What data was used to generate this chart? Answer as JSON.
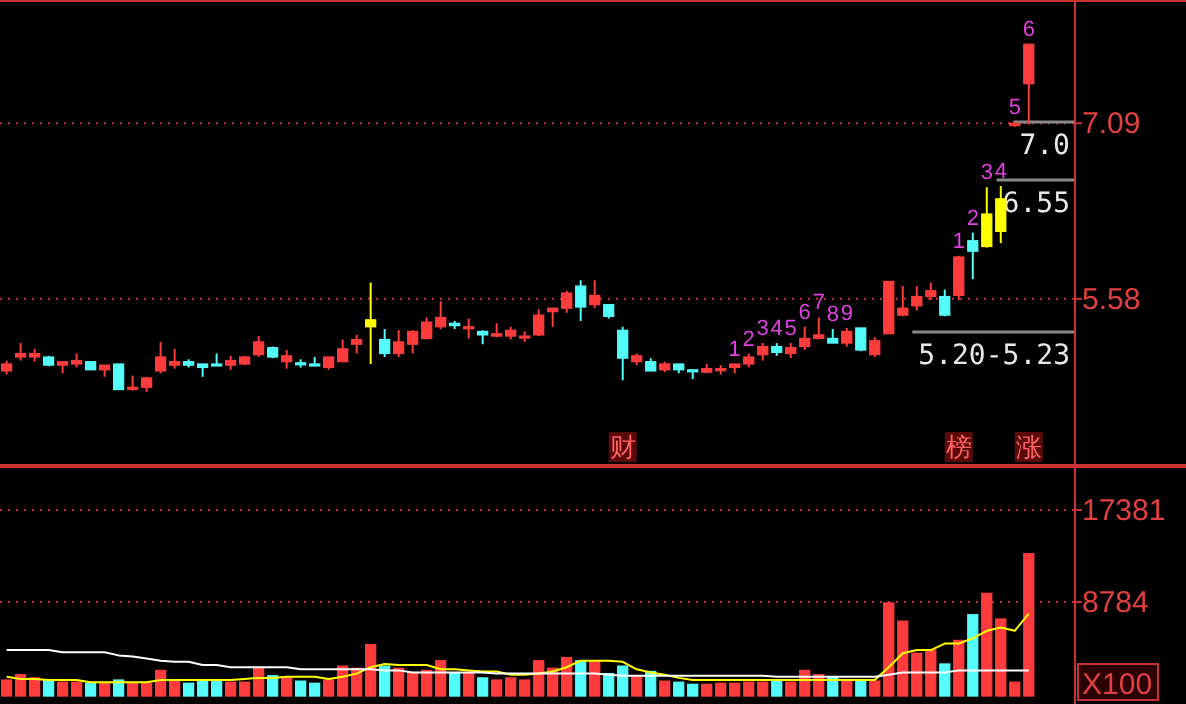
{
  "chart_data": [
    {
      "type": "candlestick",
      "categories": [
        null,
        null,
        null,
        null,
        null,
        null,
        null,
        null,
        null,
        null,
        null,
        null,
        null,
        null,
        null,
        null,
        null,
        null,
        null,
        null,
        null,
        null,
        null,
        null,
        null,
        null,
        null,
        null,
        null,
        null,
        null,
        null,
        null,
        null,
        null,
        null,
        null,
        null,
        null,
        null,
        null,
        null,
        null,
        null,
        null,
        null,
        null,
        null,
        null,
        null,
        null,
        null,
        null,
        null,
        null,
        null,
        null,
        null,
        null,
        null,
        null,
        null,
        null,
        null,
        null,
        null,
        null,
        null,
        null,
        null,
        null,
        null,
        null,
        null
      ],
      "ohlc": [
        [
          4.96,
          5.05,
          4.93,
          5.02
        ],
        [
          5.08,
          5.2,
          5.05,
          5.11
        ],
        [
          5.08,
          5.15,
          5.04,
          5.11
        ],
        [
          5.08,
          5.09,
          5.0,
          5.01
        ],
        [
          5.01,
          5.04,
          4.94,
          5.04
        ],
        [
          5.02,
          5.11,
          4.99,
          5.05
        ],
        [
          5.04,
          5.04,
          4.97,
          4.97
        ],
        [
          4.97,
          5.01,
          4.91,
          5.01
        ],
        [
          5.02,
          5.02,
          4.8,
          4.8
        ],
        [
          4.81,
          4.92,
          4.79,
          4.82
        ],
        [
          4.82,
          4.91,
          4.78,
          4.9
        ],
        [
          4.96,
          5.21,
          4.94,
          5.08
        ],
        [
          5.01,
          5.15,
          4.98,
          5.04
        ],
        [
          5.04,
          5.06,
          4.99,
          5.01
        ],
        [
          5.02,
          5.02,
          4.91,
          4.99
        ],
        [
          5.02,
          5.11,
          5.01,
          5.01
        ],
        [
          5.01,
          5.09,
          4.97,
          5.05
        ],
        [
          5.02,
          5.09,
          5.01,
          5.08
        ],
        [
          5.1,
          5.26,
          5.08,
          5.21
        ],
        [
          5.16,
          5.17,
          5.07,
          5.08
        ],
        [
          5.04,
          5.14,
          4.98,
          5.09
        ],
        [
          5.03,
          5.06,
          4.99,
          5.02
        ],
        [
          5.02,
          5.08,
          5.01,
          5.01
        ],
        [
          4.99,
          5.08,
          4.97,
          5.08
        ],
        [
          5.04,
          5.23,
          5.04,
          5.15
        ],
        [
          5.19,
          5.27,
          5.11,
          5.23
        ],
        [
          5.34,
          5.72,
          5.02,
          5.4
        ],
        [
          5.23,
          5.32,
          5.08,
          5.11
        ],
        [
          5.11,
          5.31,
          5.08,
          5.21
        ],
        [
          5.19,
          5.31,
          5.11,
          5.3
        ],
        [
          5.24,
          5.42,
          5.23,
          5.38
        ],
        [
          5.34,
          5.56,
          5.32,
          5.42
        ],
        [
          5.37,
          5.39,
          5.32,
          5.35
        ],
        [
          5.33,
          5.41,
          5.24,
          5.34
        ],
        [
          5.3,
          5.31,
          5.19,
          5.27
        ],
        [
          5.26,
          5.37,
          5.25,
          5.28
        ],
        [
          5.26,
          5.34,
          5.23,
          5.31
        ],
        [
          5.25,
          5.3,
          5.21,
          5.26
        ],
        [
          5.27,
          5.49,
          5.26,
          5.44
        ],
        [
          5.47,
          5.5,
          5.34,
          5.5
        ],
        [
          5.5,
          5.65,
          5.46,
          5.63
        ],
        [
          5.69,
          5.74,
          5.39,
          5.51
        ],
        [
          5.53,
          5.74,
          5.5,
          5.61
        ],
        [
          5.53,
          5.53,
          5.41,
          5.43
        ],
        [
          5.31,
          5.34,
          4.88,
          5.07
        ],
        [
          5.04,
          5.11,
          5.01,
          5.09
        ],
        [
          5.04,
          5.07,
          4.96,
          4.96
        ],
        [
          4.97,
          5.04,
          4.95,
          5.02
        ],
        [
          5.02,
          5.02,
          4.94,
          4.97
        ],
        [
          4.97,
          4.97,
          4.89,
          4.96
        ],
        [
          4.95,
          5.02,
          4.94,
          4.98
        ],
        [
          4.97,
          5.01,
          4.93,
          4.98
        ],
        [
          4.99,
          5.02,
          4.94,
          5.02
        ],
        [
          5.02,
          5.11,
          4.99,
          5.08
        ],
        [
          5.1,
          5.2,
          5.05,
          5.17
        ],
        [
          5.17,
          5.2,
          5.09,
          5.12
        ],
        [
          5.11,
          5.2,
          5.07,
          5.16
        ],
        [
          5.17,
          5.34,
          5.14,
          5.24
        ],
        [
          5.24,
          5.42,
          5.23,
          5.27
        ],
        [
          5.24,
          5.32,
          5.2,
          5.2
        ],
        [
          5.2,
          5.33,
          5.17,
          5.3
        ],
        [
          5.33,
          5.33,
          5.13,
          5.14
        ],
        [
          5.1,
          5.25,
          5.08,
          5.22
        ],
        [
          5.28,
          5.73,
          5.28,
          5.73
        ],
        [
          5.44,
          5.69,
          5.43,
          5.5
        ],
        [
          5.52,
          5.69,
          5.48,
          5.6
        ],
        [
          5.6,
          5.72,
          5.57,
          5.65
        ],
        [
          5.6,
          5.66,
          5.43,
          5.44
        ],
        [
          5.61,
          5.95,
          5.57,
          5.94
        ],
        [
          6.08,
          6.15,
          5.75,
          5.99
        ],
        [
          6.03,
          6.54,
          6.02,
          6.31
        ],
        [
          6.16,
          6.55,
          6.06,
          6.44
        ],
        [
          7.07,
          7.1,
          7.06,
          7.09
        ],
        [
          7.43,
          7.77,
          7.08,
          7.77
        ]
      ],
      "colors": [
        "#ff3c3c",
        "#ff3c3c",
        "#ff3c3c",
        "#54fcfc",
        "#ff3c3c",
        "#ff3c3c",
        "#54fcfc",
        "#ff3c3c",
        "#54fcfc",
        "#ff3c3c",
        "#ff3c3c",
        "#ff3c3c",
        "#ff3c3c",
        "#54fcfc",
        "#54fcfc",
        "#54fcfc",
        "#ff3c3c",
        "#ff3c3c",
        "#ff3c3c",
        "#54fcfc",
        "#ff3c3c",
        "#54fcfc",
        "#54fcfc",
        "#ff3c3c",
        "#ff3c3c",
        "#ff3c3c",
        "#ffff00",
        "#54fcfc",
        "#ff3c3c",
        "#ff3c3c",
        "#ff3c3c",
        "#ff3c3c",
        "#54fcfc",
        "#ff3c3c",
        "#54fcfc",
        "#ff3c3c",
        "#ff3c3c",
        "#ff3c3c",
        "#ff3c3c",
        "#ff3c3c",
        "#ff3c3c",
        "#54fcfc",
        "#ff3c3c",
        "#54fcfc",
        "#54fcfc",
        "#ff3c3c",
        "#54fcfc",
        "#ff3c3c",
        "#54fcfc",
        "#54fcfc",
        "#ff3c3c",
        "#ff3c3c",
        "#ff3c3c",
        "#ff3c3c",
        "#ff3c3c",
        "#54fcfc",
        "#ff3c3c",
        "#ff3c3c",
        "#ff3c3c",
        "#54fcfc",
        "#ff3c3c",
        "#54fcfc",
        "#ff3c3c",
        "#ff3c3c",
        "#ff3c3c",
        "#ff3c3c",
        "#ff3c3c",
        "#54fcfc",
        "#ff3c3c",
        "#54fcfc",
        "#ffff00",
        "#ffff00",
        "#ff3c3c",
        "#ff3c3c"
      ],
      "value_labels": [
        null,
        null,
        null,
        null,
        null,
        null,
        null,
        null,
        null,
        null,
        null,
        null,
        null,
        null,
        null,
        null,
        null,
        null,
        null,
        null,
        null,
        null,
        null,
        null,
        null,
        null,
        null,
        null,
        null,
        null,
        null,
        null,
        null,
        null,
        null,
        null,
        null,
        null,
        null,
        null,
        null,
        null,
        null,
        null,
        null,
        null,
        null,
        null,
        null,
        null,
        null,
        null,
        "1",
        "2",
        "3",
        "4",
        "5",
        "6",
        "7",
        "8",
        "9",
        null,
        null,
        null,
        null,
        null,
        null,
        null,
        "1",
        "2",
        "3",
        "4",
        "5",
        "6"
      ],
      "ylim": [
        4.16,
        8.15
      ],
      "yticks": [
        5.58,
        7.09
      ],
      "grid": "y",
      "annotations": [
        "7.0",
        "6.55",
        "5.20-5.23",
        "财",
        "榜",
        "涨"
      ]
    },
    {
      "type": "bar",
      "categories": [
        null,
        null,
        null,
        null,
        null,
        null,
        null,
        null,
        null,
        null,
        null,
        null,
        null,
        null,
        null,
        null,
        null,
        null,
        null,
        null,
        null,
        null,
        null,
        null,
        null,
        null,
        null,
        null,
        null,
        null,
        null,
        null,
        null,
        null,
        null,
        null,
        null,
        null,
        null,
        null,
        null,
        null,
        null,
        null,
        null,
        null,
        null,
        null,
        null,
        null,
        null,
        null,
        null,
        null,
        null,
        null,
        null,
        null,
        null,
        null,
        null,
        null,
        null,
        null,
        null,
        null,
        null,
        null,
        null,
        null,
        null,
        null,
        null,
        null
      ],
      "series": [
        {
          "values": [
            1500,
            2000,
            1700,
            1500,
            1300,
            1300,
            1200,
            1200,
            1500,
            1200,
            1200,
            2400,
            1500,
            1200,
            1500,
            1500,
            1300,
            1300,
            2700,
            1900,
            1800,
            1400,
            1200,
            1500,
            2800,
            2600,
            4800,
            2800,
            2600,
            2200,
            2400,
            3300,
            2100,
            2100,
            1700,
            1500,
            1700,
            1500,
            3300,
            2600,
            3600,
            3300,
            3300,
            2100,
            2800,
            1900,
            2300,
            1400,
            1300,
            1100,
            1100,
            1200,
            1200,
            1300,
            1300,
            1500,
            1300,
            2400,
            2000,
            1800,
            1500,
            1500,
            1400,
            8700,
            7000,
            4000,
            4300,
            3000,
            5200,
            7600,
            9600,
            7200,
            1300,
            13300
          ],
          "colors": [
            "#ff3c3c",
            "#ff3c3c",
            "#ff3c3c",
            "#54fcfc",
            "#ff3c3c",
            "#ff3c3c",
            "#54fcfc",
            "#ff3c3c",
            "#54fcfc",
            "#ff3c3c",
            "#ff3c3c",
            "#ff3c3c",
            "#ff3c3c",
            "#54fcfc",
            "#54fcfc",
            "#54fcfc",
            "#ff3c3c",
            "#ff3c3c",
            "#ff3c3c",
            "#54fcfc",
            "#ff3c3c",
            "#54fcfc",
            "#54fcfc",
            "#ff3c3c",
            "#ff3c3c",
            "#ff3c3c",
            "#ff3c3c",
            "#54fcfc",
            "#ff3c3c",
            "#ff3c3c",
            "#ff3c3c",
            "#ff3c3c",
            "#54fcfc",
            "#ff3c3c",
            "#54fcfc",
            "#ff3c3c",
            "#ff3c3c",
            "#ff3c3c",
            "#ff3c3c",
            "#ff3c3c",
            "#ff3c3c",
            "#54fcfc",
            "#ff3c3c",
            "#54fcfc",
            "#54fcfc",
            "#ff3c3c",
            "#54fcfc",
            "#ff3c3c",
            "#54fcfc",
            "#54fcfc",
            "#ff3c3c",
            "#ff3c3c",
            "#ff3c3c",
            "#ff3c3c",
            "#ff3c3c",
            "#54fcfc",
            "#ff3c3c",
            "#ff3c3c",
            "#ff3c3c",
            "#54fcfc",
            "#ff3c3c",
            "#54fcfc",
            "#ff3c3c",
            "#ff3c3c",
            "#ff3c3c",
            "#ff3c3c",
            "#ff3c3c",
            "#54fcfc",
            "#ff3c3c",
            "#54fcfc",
            "#ff3c3c",
            "#ff3c3c",
            "#ff3c3c",
            "#ff3c3c"
          ]
        },
        {
          "type": "line",
          "color": "#ffff00",
          "values": [
            1800,
            1600,
            1600,
            1500,
            1500,
            1500,
            1300,
            1300,
            1300,
            1300,
            1300,
            1500,
            1500,
            1500,
            1500,
            1500,
            1500,
            1600,
            1700,
            1700,
            1800,
            1800,
            1800,
            1600,
            1800,
            2100,
            2700,
            3000,
            2900,
            2900,
            2900,
            2500,
            2500,
            2400,
            2300,
            2300,
            2000,
            2000,
            2100,
            2300,
            2700,
            3300,
            3300,
            3300,
            3200,
            2500,
            2200,
            2000,
            1700,
            1500,
            1500,
            1500,
            1500,
            1500,
            1500,
            1500,
            1500,
            1500,
            1500,
            1500,
            1500,
            1500,
            1500,
            2700,
            4000,
            4300,
            4300,
            4900,
            4900,
            5400,
            6100,
            6400,
            6100,
            7700
          ]
        },
        {
          "type": "line",
          "color": "#ffffff",
          "values": [
            4300,
            4300,
            4300,
            4300,
            4100,
            4100,
            4100,
            4100,
            3800,
            3700,
            3500,
            3300,
            3200,
            3200,
            2900,
            2900,
            2700,
            2700,
            2700,
            2700,
            2700,
            2500,
            2500,
            2500,
            2500,
            2500,
            2500,
            2400,
            2400,
            2200,
            2200,
            2200,
            2200,
            2200,
            2200,
            2100,
            2100,
            2100,
            2100,
            2100,
            2100,
            2100,
            2100,
            2000,
            1900,
            1900,
            1900,
            1900,
            1900,
            1900,
            1900,
            1900,
            1900,
            1900,
            1900,
            1800,
            1800,
            1800,
            1800,
            1800,
            1800,
            1800,
            1800,
            2000,
            2200,
            2200,
            2200,
            2200,
            2400,
            2400,
            2400,
            2400,
            2400,
            2400
          ]
        }
      ],
      "ylim": [
        -740,
        21490
      ],
      "yticks": [
        8784,
        17381
      ],
      "grid": "y",
      "annotations": [
        "X100"
      ]
    }
  ]
}
